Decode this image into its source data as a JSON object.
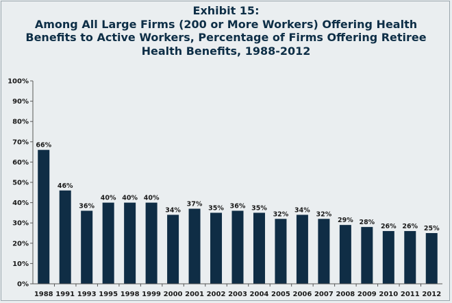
{
  "chart_data": {
    "type": "bar",
    "title": "Exhibit 15:",
    "subtitle_lines": [
      "Among All Large Firms (200 or More Workers) Offering Health",
      "Benefits to Active Workers, Percentage of Firms Offering Retiree",
      "Health Benefits, 1988-2012"
    ],
    "categories": [
      "1988",
      "1991",
      "1993",
      "1995",
      "1998",
      "1999",
      "2000",
      "2001",
      "2002",
      "2003",
      "2004",
      "2005",
      "2006",
      "2007",
      "2008",
      "2009",
      "2010",
      "2011",
      "2012"
    ],
    "values": [
      66,
      46,
      36,
      40,
      40,
      40,
      34,
      37,
      35,
      36,
      35,
      32,
      34,
      32,
      29,
      28,
      26,
      26,
      25
    ],
    "data_labels": [
      "66%",
      "46%",
      "36%",
      "40%",
      "40%",
      "40%",
      "34%",
      "37%",
      "35%",
      "36%",
      "35%",
      "32%",
      "34%",
      "32%",
      "29%",
      "28%",
      "26%",
      "26%",
      "25%"
    ],
    "y_ticks": [
      "0%",
      "10%",
      "20%",
      "30%",
      "40%",
      "50%",
      "60%",
      "70%",
      "80%",
      "90%",
      "100%"
    ],
    "ylim": [
      0,
      100
    ],
    "xlabel": "",
    "ylabel": "",
    "grid": false,
    "legend": "none",
    "bar_color": "#0f2d45",
    "axis_color": "#555555",
    "title_color": "#0d2e46"
  }
}
